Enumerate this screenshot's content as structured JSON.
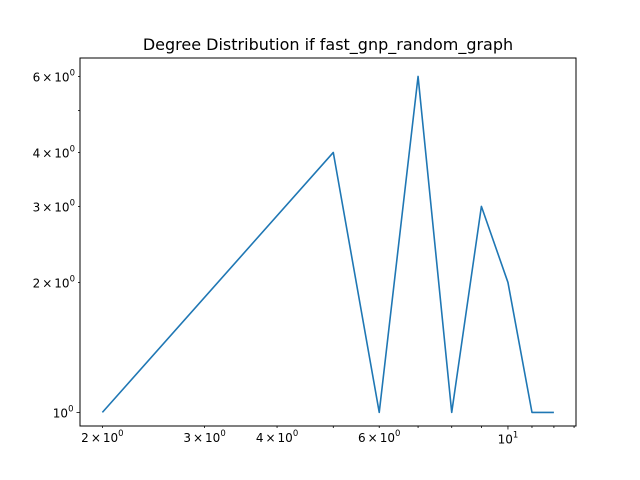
{
  "chart_data": {
    "type": "line",
    "title": "Degree Distribution if fast_gnp_random_graph",
    "xlabel": "",
    "ylabel": "",
    "xscale": "log",
    "yscale": "log",
    "xlim": [
      1.83,
      13.1
    ],
    "ylim": [
      0.93,
      6.62
    ],
    "grid": false,
    "legend": "none",
    "line_color": "#1f77b4",
    "series": [
      {
        "x": [
          2,
          5,
          6,
          7,
          8,
          9,
          10,
          11,
          12
        ],
        "y": [
          1,
          4,
          1,
          6,
          1,
          3,
          2,
          1,
          1
        ]
      }
    ],
    "x_major_ticks": [
      {
        "value": 10,
        "base": "10",
        "exp": "1"
      }
    ],
    "x_minor_ticks": [
      {
        "value": 2,
        "mant": "2",
        "base": "10",
        "exp": "0"
      },
      {
        "value": 3,
        "mant": "3",
        "base": "10",
        "exp": "0"
      },
      {
        "value": 4,
        "mant": "4",
        "base": "10",
        "exp": "0"
      },
      {
        "value": 6,
        "mant": "6",
        "base": "10",
        "exp": "0"
      },
      {
        "value": 5,
        "mant": "",
        "base": "",
        "exp": ""
      },
      {
        "value": 7,
        "mant": "",
        "base": "",
        "exp": ""
      },
      {
        "value": 8,
        "mant": "",
        "base": "",
        "exp": ""
      },
      {
        "value": 9,
        "mant": "",
        "base": "",
        "exp": ""
      },
      {
        "value": 11,
        "mant": "",
        "base": "",
        "exp": ""
      },
      {
        "value": 12,
        "mant": "",
        "base": "",
        "exp": ""
      },
      {
        "value": 13,
        "mant": "",
        "base": "",
        "exp": ""
      }
    ],
    "y_major_ticks": [
      {
        "value": 1,
        "base": "10",
        "exp": "0"
      }
    ],
    "y_minor_ticks": [
      {
        "value": 2,
        "mant": "2",
        "base": "10",
        "exp": "0"
      },
      {
        "value": 3,
        "mant": "3",
        "base": "10",
        "exp": "0"
      },
      {
        "value": 4,
        "mant": "4",
        "base": "10",
        "exp": "0"
      },
      {
        "value": 6,
        "mant": "6",
        "base": "10",
        "exp": "0"
      },
      {
        "value": 5,
        "mant": "",
        "base": "",
        "exp": ""
      }
    ]
  }
}
